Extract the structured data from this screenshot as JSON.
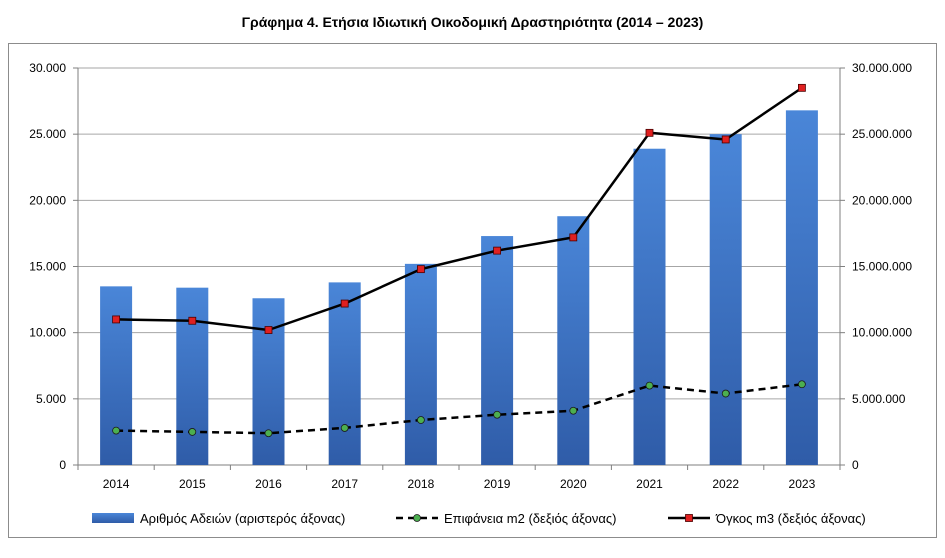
{
  "chart_data": {
    "type": "bar",
    "title": "Γράφημα 4. Ετήσια Ιδιωτική Οικοδομική Δραστηριότητα (2014 – 2023)",
    "categories": [
      "2014",
      "2015",
      "2016",
      "2017",
      "2018",
      "2019",
      "2020",
      "2021",
      "2022",
      "2023"
    ],
    "left_axis": {
      "ylim": [
        0,
        30000
      ],
      "ticks": [
        0,
        5000,
        10000,
        15000,
        20000,
        25000,
        30000
      ],
      "tick_labels": [
        "0",
        "5.000",
        "10.000",
        "15.000",
        "20.000",
        "25.000",
        "30.000"
      ]
    },
    "right_axis": {
      "ylim": [
        0,
        30000000
      ],
      "ticks": [
        0,
        5000000,
        10000000,
        15000000,
        20000000,
        25000000,
        30000000
      ],
      "tick_labels": [
        "0",
        "5.000.000",
        "10.000.000",
        "15.000.000",
        "20.000.000",
        "25.000.000",
        "30.000.000"
      ]
    },
    "series": [
      {
        "name": "Αριθμός Αδειών (αριστερός άξονας)",
        "type": "bar",
        "axis": "left",
        "color": "#4472c4",
        "values": [
          13500,
          13400,
          12600,
          13800,
          15200,
          17300,
          18800,
          23900,
          25000,
          26800
        ]
      },
      {
        "name": "Επιφάνεια m2 (δεξιός άξονας)",
        "type": "line",
        "style": "dashed",
        "axis": "right",
        "color": "#000000",
        "marker_color": "#4caf50",
        "values": [
          2600000,
          2500000,
          2400000,
          2800000,
          3400000,
          3800000,
          4100000,
          6000000,
          5400000,
          6100000
        ]
      },
      {
        "name": "Όγκος m3 (δεξιός άξονας)",
        "type": "line",
        "style": "solid",
        "axis": "right",
        "color": "#000000",
        "marker_color": "#e02020",
        "values": [
          11000000,
          10900000,
          10200000,
          12200000,
          14800000,
          16200000,
          17200000,
          25100000,
          24600000,
          28500000
        ]
      }
    ],
    "grid": true,
    "legend_position": "bottom"
  }
}
